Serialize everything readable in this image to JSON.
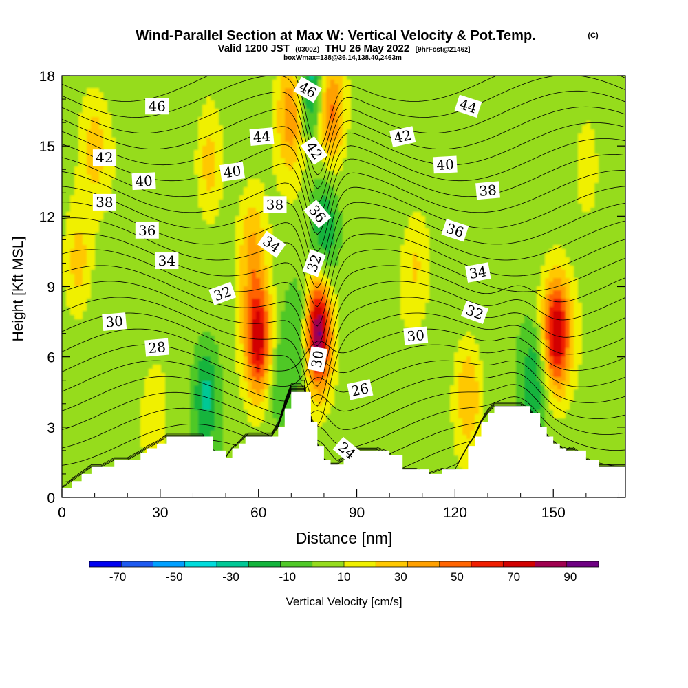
{
  "title": {
    "main": "Wind-Parallel Section at Max W: Vertical Velocity & Pot.Temp.",
    "main_mark": "(C)",
    "line2_a": "Valid 1200 JST",
    "line2_b": "(0300Z)",
    "line2_c": "THU 26 May 2022",
    "line2_d": "[9hrFcst@2146z]",
    "line3": "boxWmax=138@36.14,138.40,2463m"
  },
  "chart_data": {
    "type": "heatmap",
    "xlabel": "Distance [nm]",
    "ylabel": "Height [Kft MSL]",
    "xlim": [
      0,
      172
    ],
    "ylim": [
      0,
      18
    ],
    "xticks": [
      0,
      30,
      60,
      90,
      120,
      150
    ],
    "yticks": [
      0,
      3,
      6,
      9,
      12,
      15,
      18
    ],
    "colorbar": {
      "label": "Vertical Velocity [cm/s]",
      "range": [
        -80,
        100
      ],
      "ticks": [
        -70,
        -50,
        -30,
        -10,
        10,
        30,
        50,
        70,
        90
      ],
      "colors": [
        "#0000f0",
        "#1e5af0",
        "#00a0ff",
        "#00dcdc",
        "#00c896",
        "#14b43c",
        "#50c828",
        "#96dc1e",
        "#f0f000",
        "#ffc800",
        "#ffa000",
        "#ff6400",
        "#f01e00",
        "#d20000",
        "#a00050",
        "#6e0082"
      ]
    },
    "velocity_features": [
      {
        "x": 5,
        "z": 10.0,
        "w": 22
      },
      {
        "x": 10,
        "z": 15.0,
        "w": 20
      },
      {
        "x": 28,
        "z": 3.5,
        "w": 14
      },
      {
        "x": 45,
        "z": 14.2,
        "w": 26
      },
      {
        "x": 44,
        "z": 4.5,
        "w": -32
      },
      {
        "x": 60,
        "z": 6.7,
        "w": 72
      },
      {
        "x": 58,
        "z": 10.5,
        "w": 30
      },
      {
        "x": 66,
        "z": 5.0,
        "w": -14
      },
      {
        "x": 70,
        "z": 16.5,
        "w": 40
      },
      {
        "x": 76,
        "z": 17.5,
        "w": -36
      },
      {
        "x": 74,
        "z": 7.0,
        "w": -24
      },
      {
        "x": 78,
        "z": 7.0,
        "w": 98
      },
      {
        "x": 80,
        "z": 11.5,
        "w": -30
      },
      {
        "x": 82,
        "z": 16.5,
        "w": 44
      },
      {
        "x": 108,
        "z": 10.0,
        "w": 18
      },
      {
        "x": 124,
        "z": 4.5,
        "w": 30
      },
      {
        "x": 144,
        "z": 5.0,
        "w": -28
      },
      {
        "x": 151,
        "z": 7.0,
        "w": 72
      },
      {
        "x": 160,
        "z": 14.0,
        "w": 16
      }
    ],
    "terrain": {
      "x": [
        0,
        3,
        6,
        9,
        12,
        16,
        20,
        24,
        26,
        29,
        32,
        36,
        40,
        43,
        46,
        50,
        52,
        54,
        56,
        58,
        60,
        62,
        64,
        66,
        68,
        70,
        72,
        74,
        76,
        78,
        80,
        82,
        84,
        86,
        88,
        90,
        92,
        94,
        96,
        100,
        104,
        108,
        112,
        116,
        120,
        124,
        126,
        128,
        130,
        132,
        134,
        137,
        140,
        143,
        146,
        148,
        150,
        152,
        154,
        156,
        160,
        164,
        168,
        172
      ],
      "z": [
        0.4,
        0.7,
        1.0,
        1.3,
        1.3,
        1.6,
        1.6,
        1.9,
        2.1,
        2.3,
        2.6,
        2.6,
        2.6,
        2.6,
        2.0,
        1.7,
        2.1,
        2.3,
        2.6,
        2.6,
        2.6,
        2.6,
        2.6,
        3.0,
        3.8,
        4.5,
        4.5,
        4.5,
        3.2,
        2.2,
        1.6,
        1.4,
        1.4,
        1.6,
        1.8,
        2.0,
        2.0,
        2.0,
        2.0,
        1.8,
        1.2,
        1.2,
        1.0,
        1.2,
        1.2,
        2.2,
        2.6,
        3.2,
        3.6,
        3.9,
        3.9,
        3.9,
        3.9,
        3.6,
        3.0,
        2.6,
        2.3,
        2.1,
        2.0,
        2.0,
        1.6,
        1.3,
        1.3,
        1.3
      ]
    },
    "theta_contours": [
      24,
      26,
      28,
      30,
      32,
      34,
      36,
      38,
      40,
      42,
      44,
      46
    ],
    "theta_labels": [
      {
        "text": "46",
        "x": 29,
        "z": 16.7,
        "rot": 0
      },
      {
        "text": "44",
        "x": 124,
        "z": 16.7,
        "rot": 18
      },
      {
        "text": "46",
        "x": 75,
        "z": 17.4,
        "rot": 30
      },
      {
        "text": "44",
        "x": 61,
        "z": 15.4,
        "rot": -5
      },
      {
        "text": "42",
        "x": 77,
        "z": 14.8,
        "rot": 55
      },
      {
        "text": "42",
        "x": 104,
        "z": 15.4,
        "rot": -12
      },
      {
        "text": "42",
        "x": 13,
        "z": 14.5,
        "rot": 0
      },
      {
        "text": "40",
        "x": 52,
        "z": 13.9,
        "rot": -8
      },
      {
        "text": "40",
        "x": 117,
        "z": 14.2,
        "rot": -3
      },
      {
        "text": "40",
        "x": 25,
        "z": 13.5,
        "rot": -3
      },
      {
        "text": "38",
        "x": 13,
        "z": 12.6,
        "rot": 0
      },
      {
        "text": "38",
        "x": 65,
        "z": 12.5,
        "rot": 0
      },
      {
        "text": "38",
        "x": 130,
        "z": 13.1,
        "rot": -5
      },
      {
        "text": "36",
        "x": 78,
        "z": 12.1,
        "rot": 50
      },
      {
        "text": "36",
        "x": 26,
        "z": 11.4,
        "rot": 0
      },
      {
        "text": "36",
        "x": 120,
        "z": 11.4,
        "rot": 18
      },
      {
        "text": "34",
        "x": 64,
        "z": 10.8,
        "rot": 35
      },
      {
        "text": "34",
        "x": 32,
        "z": 10.1,
        "rot": 0
      },
      {
        "text": "34",
        "x": 127,
        "z": 9.6,
        "rot": -10
      },
      {
        "text": "32",
        "x": 77,
        "z": 10.0,
        "rot": -70
      },
      {
        "text": "32",
        "x": 49,
        "z": 8.7,
        "rot": -20
      },
      {
        "text": "32",
        "x": 126,
        "z": 7.9,
        "rot": 20
      },
      {
        "text": "30",
        "x": 16,
        "z": 7.5,
        "rot": -5
      },
      {
        "text": "30",
        "x": 108,
        "z": 6.9,
        "rot": -5
      },
      {
        "text": "30",
        "x": 78,
        "z": 5.9,
        "rot": -80
      },
      {
        "text": "28",
        "x": 29,
        "z": 6.4,
        "rot": -5
      },
      {
        "text": "26",
        "x": 91,
        "z": 4.6,
        "rot": -12
      },
      {
        "text": "24",
        "x": 87,
        "z": 2.0,
        "rot": 40
      }
    ]
  }
}
